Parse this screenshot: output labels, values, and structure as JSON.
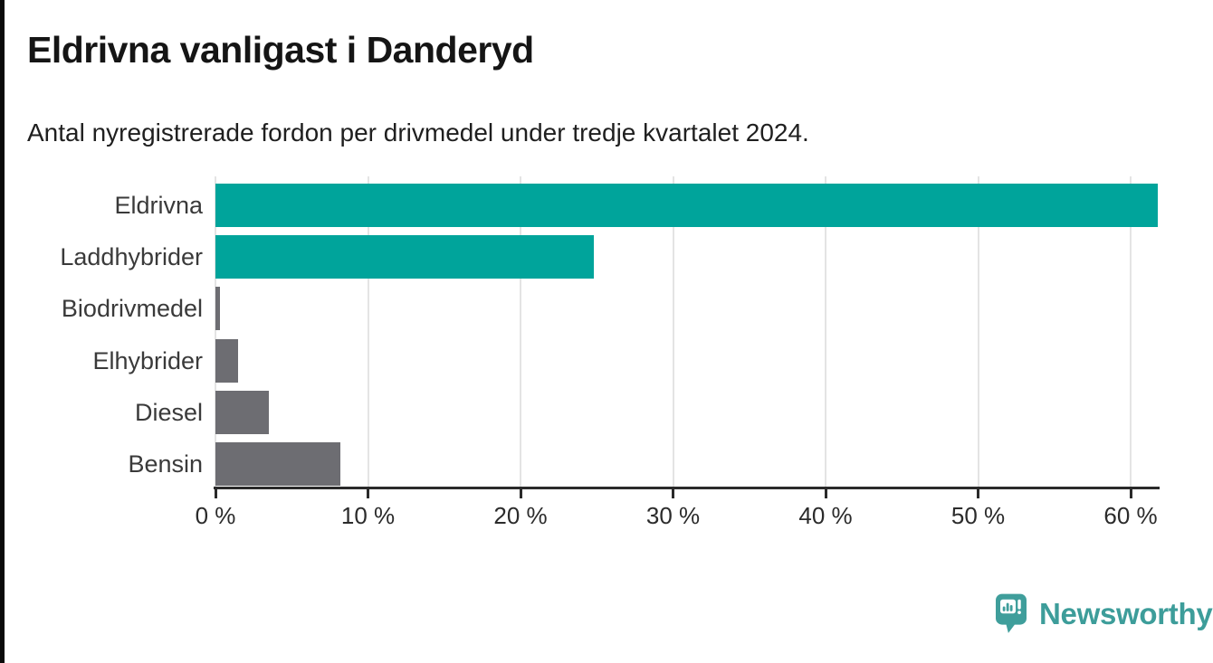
{
  "header": {
    "title": "Eldrivna vanligast i Danderyd",
    "subtitle": "Antal nyregistrerade fordon per drivmedel under tredje kvartalet 2024."
  },
  "chart_data": {
    "type": "bar",
    "orientation": "horizontal",
    "title": "Eldrivna vanligast i Danderyd",
    "subtitle": "Antal nyregistrerade fordon per drivmedel under tredje kvartalet 2024.",
    "categories": [
      "Eldrivna",
      "Laddhybrider",
      "Biodrivmedel",
      "Elhybrider",
      "Diesel",
      "Bensin"
    ],
    "values": [
      61.8,
      24.8,
      0.3,
      1.5,
      3.5,
      8.2
    ],
    "unit": "%",
    "xlabel": "",
    "ylabel": "",
    "xlim": [
      0,
      62
    ],
    "x_ticks": [
      0,
      10,
      20,
      30,
      40,
      50,
      60
    ],
    "x_tick_labels": [
      "0 %",
      "10 %",
      "20 %",
      "30 %",
      "40 %",
      "50 %",
      "60 %"
    ],
    "grid": true,
    "legend": "none",
    "bar_colors": [
      "#00A49B",
      "#00A49B",
      "#6D6D72",
      "#6D6D72",
      "#6D6D72",
      "#6D6D72"
    ],
    "highlight_color": "#00A49B",
    "default_color": "#6D6D72",
    "gridline_color": "#e4e4e4",
    "axis_color": "#2a2a2a"
  },
  "footer": {
    "brand": "Newsworthy",
    "brand_color": "#3D9D9A",
    "logo_icon": "newsworthy-speech-bubble-barchart-icon"
  }
}
